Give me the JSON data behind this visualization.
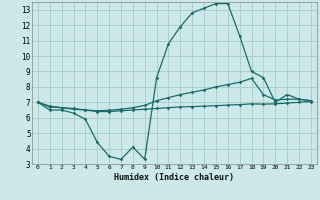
{
  "xlabel": "Humidex (Indice chaleur)",
  "background_color": "#cce8e8",
  "grid_color": "#aacece",
  "line_color": "#1a6b6b",
  "xlim": [
    -0.5,
    23.5
  ],
  "ylim": [
    3,
    13.5
  ],
  "xticks": [
    0,
    1,
    2,
    3,
    4,
    5,
    6,
    7,
    8,
    9,
    10,
    11,
    12,
    13,
    14,
    15,
    16,
    17,
    18,
    19,
    20,
    21,
    22,
    23
  ],
  "yticks": [
    3,
    4,
    5,
    6,
    7,
    8,
    9,
    10,
    11,
    12,
    13
  ],
  "series": {
    "max": {
      "x": [
        0,
        1,
        2,
        3,
        4,
        5,
        6,
        7,
        8,
        9,
        10,
        11,
        12,
        13,
        14,
        15,
        16,
        17,
        18,
        19,
        20,
        21,
        22,
        23
      ],
      "y": [
        7.0,
        6.5,
        6.5,
        6.3,
        5.9,
        4.4,
        3.5,
        3.3,
        4.1,
        3.3,
        8.6,
        10.8,
        11.9,
        12.8,
        13.1,
        13.4,
        13.4,
        11.3,
        9.0,
        8.6,
        7.0,
        7.5,
        7.2,
        7.1
      ]
    },
    "mean": {
      "x": [
        0,
        1,
        2,
        3,
        4,
        5,
        6,
        7,
        8,
        9,
        10,
        11,
        12,
        13,
        14,
        15,
        16,
        17,
        18,
        19,
        20,
        21,
        22,
        23
      ],
      "y": [
        7.0,
        6.7,
        6.65,
        6.55,
        6.5,
        6.45,
        6.48,
        6.55,
        6.65,
        6.8,
        7.1,
        7.3,
        7.5,
        7.65,
        7.8,
        8.0,
        8.15,
        8.3,
        8.55,
        7.5,
        7.15,
        7.2,
        7.2,
        7.1
      ]
    },
    "min": {
      "x": [
        0,
        1,
        2,
        3,
        4,
        5,
        6,
        7,
        8,
        9,
        10,
        11,
        12,
        13,
        14,
        15,
        16,
        17,
        18,
        19,
        20,
        21,
        22,
        23
      ],
      "y": [
        7.0,
        6.75,
        6.65,
        6.6,
        6.5,
        6.4,
        6.4,
        6.45,
        6.5,
        6.55,
        6.6,
        6.65,
        6.7,
        6.72,
        6.75,
        6.78,
        6.82,
        6.85,
        6.9,
        6.88,
        6.9,
        6.95,
        7.0,
        7.05
      ]
    }
  }
}
